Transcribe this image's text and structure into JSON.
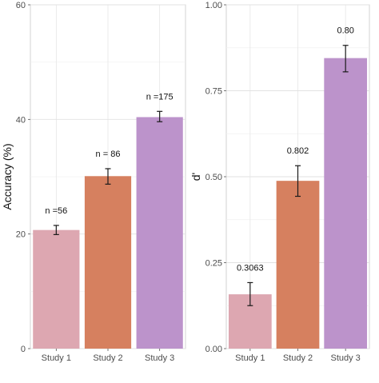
{
  "chart_data": [
    {
      "type": "bar",
      "title": "",
      "xlabel": "",
      "ylabel": "Accuracy (%)",
      "categories": [
        "Study 1",
        "Study 2",
        "Study 3"
      ],
      "values": [
        20.7,
        30.1,
        40.4
      ],
      "error_low": [
        19.9,
        28.7,
        39.6
      ],
      "error_high": [
        21.5,
        31.4,
        41.4
      ],
      "bar_labels": [
        "n =56",
        "n = 86",
        "n =175"
      ],
      "ylim": [
        0,
        60
      ],
      "yticks": [
        0,
        20,
        40,
        60
      ],
      "ytick_labels": [
        "0",
        "20",
        "40",
        "60"
      ],
      "grid": true,
      "colors": [
        "#dda7b1",
        "#d6805f",
        "#bc93cb"
      ]
    },
    {
      "type": "bar",
      "title": "",
      "xlabel": "",
      "ylabel": "d'",
      "categories": [
        "Study 1",
        "Study 2",
        "Study 3"
      ],
      "values": [
        0.158,
        0.488,
        0.845
      ],
      "error_low": [
        0.125,
        0.443,
        0.805
      ],
      "error_high": [
        0.192,
        0.532,
        0.882
      ],
      "bar_labels": [
        "0.3063",
        "0.802",
        "0.80"
      ],
      "ylim": [
        0,
        1.0
      ],
      "yticks": [
        0,
        0.25,
        0.5,
        0.75,
        1.0
      ],
      "ytick_labels": [
        "0.00",
        "0.25",
        "0.50",
        "0.75",
        "1.00"
      ],
      "grid": true,
      "colors": [
        "#dda7b1",
        "#d6805f",
        "#bc93cb"
      ]
    }
  ]
}
